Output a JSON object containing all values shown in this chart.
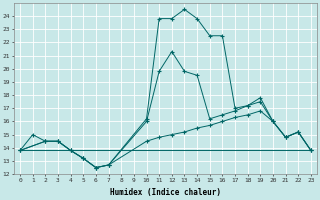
{
  "xlabel": "Humidex (Indice chaleur)",
  "bg_color": "#c8e8e8",
  "grid_color": "#ffffff",
  "line_color": "#006666",
  "xlim": [
    -0.5,
    23.5
  ],
  "ylim": [
    12,
    25
  ],
  "line1_x": [
    0,
    1,
    2,
    3,
    4,
    5,
    6,
    7,
    10,
    11,
    12,
    13,
    14,
    15,
    16,
    17,
    18,
    19,
    20,
    21,
    22,
    23
  ],
  "line1_y": [
    13.8,
    15.0,
    14.5,
    14.5,
    13.8,
    13.2,
    12.5,
    12.7,
    16.2,
    23.8,
    23.8,
    24.5,
    23.8,
    22.5,
    22.5,
    17.0,
    17.2,
    17.8,
    16.0,
    14.8,
    15.2,
    13.8
  ],
  "line2_x": [
    0,
    2,
    3,
    4,
    5,
    6,
    7,
    10,
    11,
    12,
    13,
    14,
    15,
    16,
    17,
    18,
    19,
    20,
    21,
    22,
    23
  ],
  "line2_y": [
    13.8,
    14.5,
    14.5,
    13.8,
    13.2,
    12.5,
    12.7,
    16.0,
    19.8,
    21.3,
    19.8,
    19.5,
    16.2,
    16.5,
    16.8,
    17.2,
    17.5,
    16.0,
    14.8,
    15.2,
    13.8
  ],
  "line3_x": [
    0,
    2,
    3,
    4,
    5,
    6,
    7,
    10,
    11,
    12,
    13,
    14,
    15,
    16,
    17,
    18,
    19,
    20,
    21,
    22,
    23
  ],
  "line3_y": [
    13.8,
    14.5,
    14.5,
    13.8,
    13.2,
    12.5,
    12.7,
    14.5,
    14.8,
    15.0,
    15.2,
    15.5,
    15.7,
    16.0,
    16.3,
    16.5,
    16.8,
    16.0,
    14.8,
    15.2,
    13.8
  ],
  "line4_x": [
    0,
    23
  ],
  "line4_y": [
    13.8,
    13.8
  ]
}
